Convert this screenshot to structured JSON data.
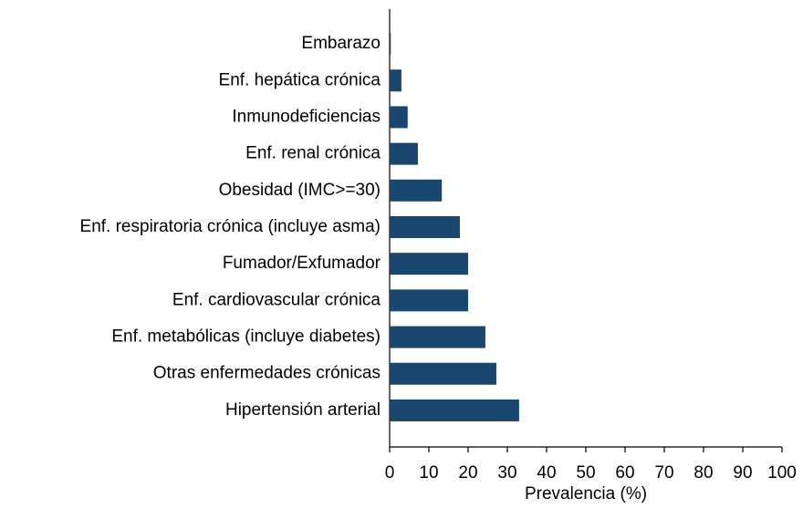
{
  "chart_data": {
    "type": "bar",
    "orientation": "horizontal",
    "categories": [
      "Embarazo",
      "Enf. hepática crónica",
      "Inmunodeficiencias",
      "Enf. renal crónica",
      "Obesidad (IMC>=30)",
      "Enf. respiratoria crónica (incluye asma)",
      "Fumador/Exfumador",
      "Enf. cardiovascular crónica",
      "Enf. metabólicas (incluye diabetes)",
      "Otras enfermedades crónicas",
      "Hipertensión arterial"
    ],
    "values": [
      0.3,
      3.0,
      4.6,
      7.2,
      13.3,
      17.9,
      20.0,
      20.0,
      24.4,
      27.2,
      33.0
    ],
    "color": "#1a476f",
    "x_label": "Prevalencia (%)",
    "xlim": [
      0,
      100
    ],
    "xticks": [
      0,
      10,
      20,
      30,
      40,
      50,
      60,
      70,
      80,
      90,
      100
    ]
  }
}
